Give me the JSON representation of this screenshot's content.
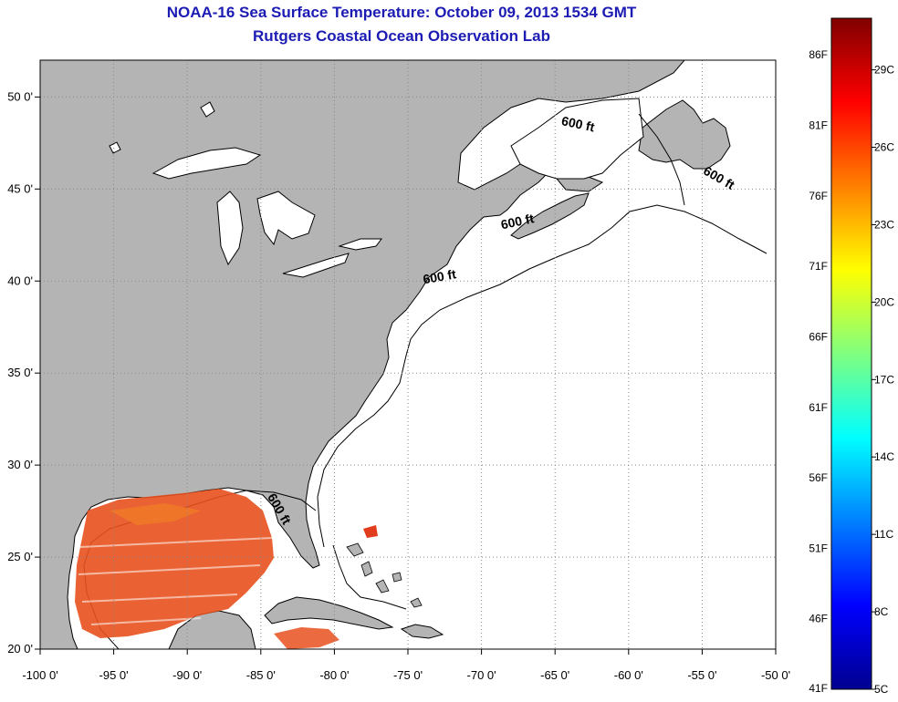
{
  "header": {
    "title": "NOAA-16 Sea Surface Temperature:  October 09, 2013 1534 GMT",
    "subtitle": "Rutgers Coastal Ocean Observation Lab"
  },
  "map": {
    "lon_range": [
      -100,
      -50
    ],
    "lat_range": [
      20,
      52
    ],
    "x_ticks": [
      {
        "value": -100,
        "label": "-100 0'"
      },
      {
        "value": -95,
        "label": "-95 0'"
      },
      {
        "value": -90,
        "label": "-90 0'"
      },
      {
        "value": -85,
        "label": "-85 0'"
      },
      {
        "value": -80,
        "label": "-80 0'"
      },
      {
        "value": -75,
        "label": "-75 0'"
      },
      {
        "value": -70,
        "label": "-70 0'"
      },
      {
        "value": -65,
        "label": "-65 0'"
      },
      {
        "value": -60,
        "label": "-60 0'"
      },
      {
        "value": -55,
        "label": "-55 0'"
      },
      {
        "value": -50,
        "label": "-50 0'"
      }
    ],
    "y_ticks": [
      {
        "value": 20,
        "label": "20 0'"
      },
      {
        "value": 25,
        "label": "25 0'"
      },
      {
        "value": 30,
        "label": "30 0'"
      },
      {
        "value": 35,
        "label": "35 0'"
      },
      {
        "value": 40,
        "label": "40 0'"
      },
      {
        "value": 45,
        "label": "45 0'"
      },
      {
        "value": 50,
        "label": "50 0'"
      }
    ],
    "grid": "dotted",
    "contour_label": "600 ft",
    "contour_labels": [
      {
        "lon": -63.5,
        "lat": 48.3,
        "angle": 12
      },
      {
        "lon": -54,
        "lat": 45.4,
        "angle": 30
      },
      {
        "lon": -67.5,
        "lat": 43.0,
        "angle": -12
      },
      {
        "lon": -72.8,
        "lat": 40.0,
        "angle": -10
      },
      {
        "lon": -84.0,
        "lat": 27.5,
        "angle": 60
      }
    ],
    "colors": {
      "land": "#b4b4b4",
      "ocean": "#ffffff",
      "grid": "#888888"
    }
  },
  "colorbar": {
    "f_labels": [
      "86F",
      "81F",
      "76F",
      "71F",
      "66F",
      "61F",
      "56F",
      "51F",
      "46F",
      "41F"
    ],
    "c_labels": [
      "29C",
      "26C",
      "23C",
      "20C",
      "17C",
      "14C",
      "11C",
      "8C",
      "5C"
    ],
    "colormap": "jet",
    "range_c": [
      5,
      31
    ]
  }
}
